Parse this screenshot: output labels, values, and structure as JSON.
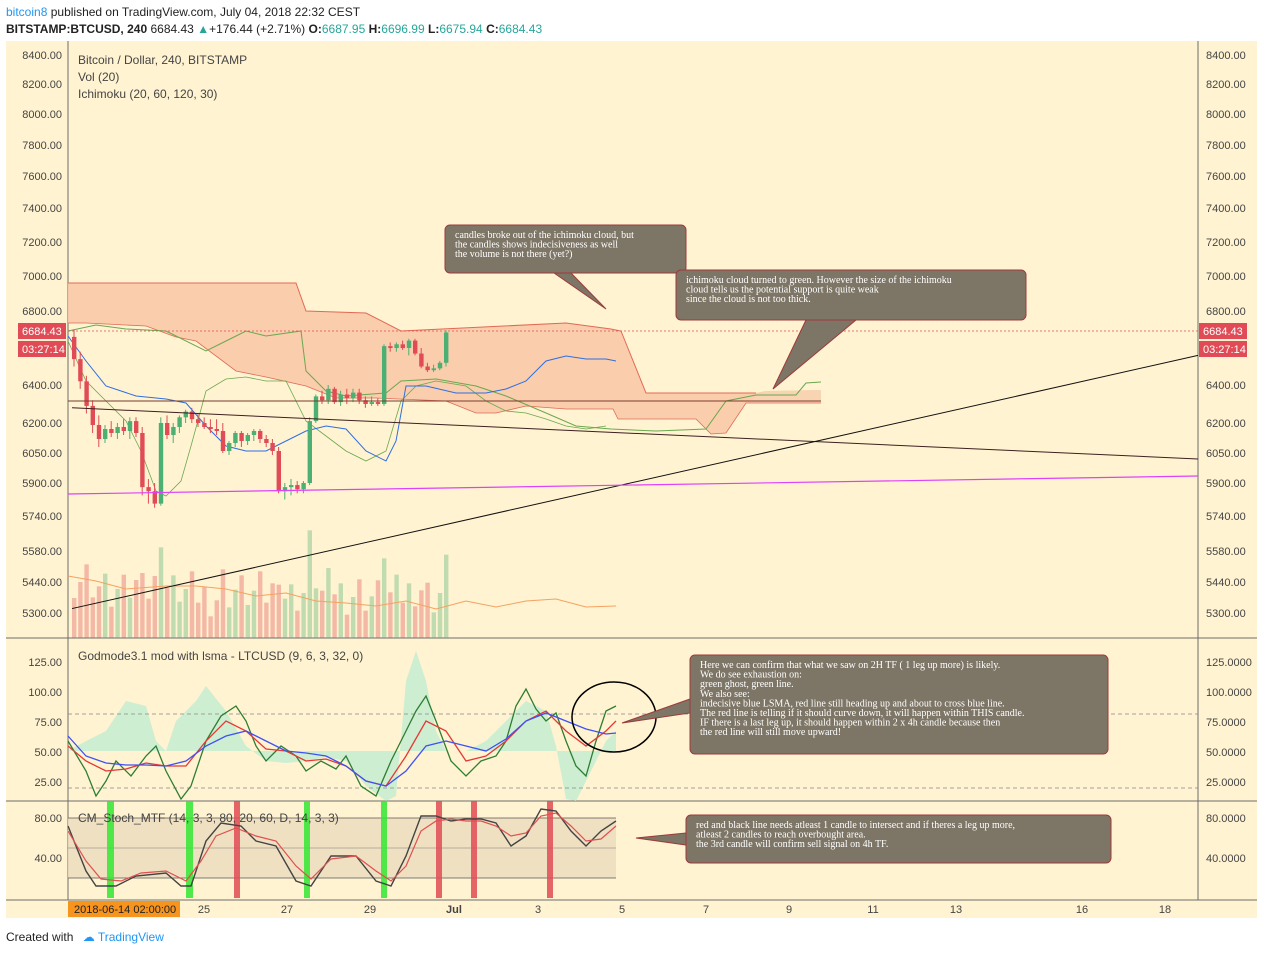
{
  "header": {
    "username": "bitcoin8",
    "published_text": "published on TradingView.com, July 04, 2018 22:32 CEST",
    "symbol": "BITSTAMP:BTCUSD, 240",
    "last_price": "6684.43",
    "change": "+176.44 (+2.71%)",
    "open_label": "O:",
    "open": "6687.95",
    "high_label": "H:",
    "high": "6696.99",
    "low_label": "L:",
    "low": "6675.94",
    "close_label": "C:",
    "close": "6684.43",
    "up_arrow": "▲"
  },
  "main_panel": {
    "legend": [
      "Bitcoin / Dollar, 240, BITSTAMP",
      "Vol (20)",
      "Ichimoku (20, 60, 120, 30)"
    ],
    "price_ticks": [
      "8400.00",
      "8200.00",
      "8000.00",
      "7800.00",
      "7600.00",
      "7400.00",
      "7200.00",
      "7000.00",
      "6800.00",
      "6400.00",
      "6200.00",
      "6050.00",
      "5900.00",
      "5740.00",
      "5580.00",
      "5440.00",
      "5300.00"
    ],
    "price_label": "6684.43",
    "countdown_label": "03:27:14",
    "colors": {
      "up": "#4caf73",
      "down": "#e04b55",
      "cloud": "#f9c9a7",
      "accent": "#e04b55"
    }
  },
  "godmode_panel": {
    "legend": "Godmode3.1 mod with lsma - LTCUSD (9, 6, 3, 32, 0)",
    "ticks": [
      "125.0000",
      "100.0000",
      "75.0000",
      "50.0000",
      "25.0000"
    ]
  },
  "stoch_panel": {
    "legend": "CM_Stoch_MTF (14, 3, 3, 80, 20, 60, D, 14, 3, 3)",
    "ticks": [
      "80.0000",
      "40.0000"
    ]
  },
  "time_axis": {
    "cursor_label": "2018-06-14 02:00:00",
    "ticks": [
      "25",
      "27",
      "29",
      "Jul",
      "3",
      "5",
      "7",
      "9",
      "11",
      "13",
      "16",
      "18"
    ]
  },
  "annotations": [
    {
      "lines": [
        "candles broke out of the ichimoku cloud, but",
        "the candles shows indecisiveness as well",
        "the volume is not there (yet?)"
      ]
    },
    {
      "lines": [
        "ichimoku cloud turned to green. However the size of the ichimoku",
        "cloud tells us the potential support is quite weak",
        "since the cloud is not too thick."
      ]
    },
    {
      "lines": [
        "Here we can confirm that what we saw on 2H TF ( 1 leg up more) is likely.",
        "We do see exhaustion on:",
        "green ghost, green line.",
        "We also see:",
        "indecisive blue LSMA, red line still heading up and about to cross blue line.",
        "The red line is telling if it should curve down, it will happen within THIS candle.",
        "IF there is a last leg up, it should happen within 2 x 4h candle because then",
        "the red line will still move upward!"
      ]
    },
    {
      "lines": [
        "red and black line needs atleast 1 candle to intersect and if theres a leg up more,",
        "atleast 2 candles to reach overbought area.",
        "the 3rd candle will confirm sell signal on 4h TF."
      ]
    }
  ],
  "footer": {
    "created_with": "Created with",
    "brand": "TradingView"
  },
  "chart_data": {
    "type": "candlestick",
    "title": "Bitcoin / Dollar, 240, BITSTAMP",
    "x_range": [
      "2018-06-23",
      "2018-07-19"
    ],
    "y_range": [
      5200,
      8450
    ],
    "candles": [
      [
        6660,
        6700,
        6500,
        6540
      ],
      [
        6540,
        6580,
        6380,
        6420
      ],
      [
        6420,
        6450,
        6250,
        6290
      ],
      [
        6290,
        6320,
        6150,
        6190
      ],
      [
        6190,
        6240,
        6080,
        6120
      ],
      [
        6120,
        6190,
        6100,
        6170
      ],
      [
        6170,
        6210,
        6130,
        6150
      ],
      [
        6150,
        6200,
        6120,
        6180
      ],
      [
        6180,
        6220,
        6140,
        6160
      ],
      [
        6160,
        6230,
        6120,
        6210
      ],
      [
        6210,
        6230,
        6130,
        6150
      ],
      [
        6150,
        6180,
        5840,
        5880
      ],
      [
        5880,
        5920,
        5800,
        5860
      ],
      [
        5860,
        5900,
        5780,
        5800
      ],
      [
        5800,
        6230,
        5790,
        6200
      ],
      [
        6200,
        6240,
        6120,
        6140
      ],
      [
        6140,
        6200,
        6100,
        6180
      ],
      [
        6180,
        6240,
        6150,
        6230
      ],
      [
        6230,
        6270,
        6200,
        6260
      ],
      [
        6260,
        6280,
        6200,
        6220
      ],
      [
        6220,
        6250,
        6180,
        6200
      ],
      [
        6200,
        6230,
        6170,
        6180
      ],
      [
        6180,
        6220,
        6150,
        6170
      ],
      [
        6170,
        6220,
        6140,
        6160
      ],
      [
        6160,
        6200,
        6050,
        6060
      ],
      [
        6060,
        6110,
        6040,
        6100
      ],
      [
        6100,
        6160,
        6080,
        6150
      ],
      [
        6150,
        6160,
        6080,
        6110
      ],
      [
        6110,
        6150,
        6090,
        6140
      ],
      [
        6140,
        6170,
        6110,
        6160
      ],
      [
        6160,
        6170,
        6100,
        6120
      ],
      [
        6120,
        6140,
        6080,
        6100
      ],
      [
        6100,
        6120,
        6040,
        6060
      ],
      [
        6060,
        6080,
        5850,
        5860
      ],
      [
        5860,
        5900,
        5820,
        5880
      ],
      [
        5880,
        5920,
        5840,
        5890
      ],
      [
        5890,
        5910,
        5850,
        5870
      ],
      [
        5870,
        5910,
        5850,
        5900
      ],
      [
        5900,
        6230,
        5890,
        6210
      ],
      [
        6210,
        6350,
        6200,
        6340
      ],
      [
        6340,
        6370,
        6300,
        6320
      ],
      [
        6320,
        6400,
        6300,
        6380
      ],
      [
        6380,
        6390,
        6300,
        6310
      ],
      [
        6310,
        6370,
        6290,
        6350
      ],
      [
        6350,
        6380,
        6300,
        6330
      ],
      [
        6330,
        6380,
        6310,
        6360
      ],
      [
        6360,
        6380,
        6300,
        6320
      ],
      [
        6320,
        6340,
        6280,
        6300
      ],
      [
        6300,
        6340,
        6290,
        6310
      ],
      [
        6310,
        6330,
        6290,
        6300
      ],
      [
        6300,
        6620,
        6290,
        6610
      ],
      [
        6610,
        6630,
        6580,
        6600
      ],
      [
        6600,
        6630,
        6580,
        6620
      ],
      [
        6620,
        6640,
        6590,
        6600
      ],
      [
        6600,
        6650,
        6560,
        6640
      ],
      [
        6640,
        6650,
        6560,
        6570
      ],
      [
        6570,
        6600,
        6490,
        6500
      ],
      [
        6500,
        6520,
        6470,
        6480
      ],
      [
        6480,
        6510,
        6470,
        6490
      ],
      [
        6490,
        6530,
        6480,
        6520
      ],
      [
        6520,
        6696,
        6500,
        6684
      ]
    ],
    "lines": [
      {
        "name": "Falling trendline",
        "values": [
          {
            "x": "2018-06-23",
            "y": 6280
          },
          {
            "x": "2018-07-18",
            "y": 6020
          }
        ]
      },
      {
        "name": "Rising trendline",
        "values": [
          {
            "x": "2018-06-23",
            "y": 5320
          },
          {
            "x": "2018-07-18",
            "y": 6560
          }
        ]
      }
    ]
  }
}
